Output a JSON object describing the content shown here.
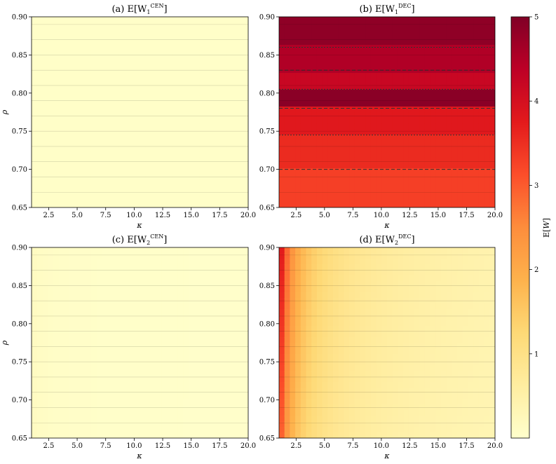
{
  "chart_data": [
    {
      "type": "heatmap",
      "panel": "a",
      "title": {
        "prefix": "(a) E[W",
        "sub": "1",
        "sup": "CEN",
        "suffix": "]"
      },
      "xlabel": "κ",
      "ylabel": "ρ",
      "xlim": [
        1,
        20
      ],
      "ylim": [
        0.65,
        0.9
      ],
      "xticks": [
        2.5,
        5.0,
        7.5,
        10.0,
        12.5,
        15.0,
        17.5,
        20.0
      ],
      "xtick_labels": [
        "2.5",
        "5.0",
        "7.5",
        "10.0",
        "12.5",
        "15.0",
        "17.5",
        "20.0"
      ],
      "yticks": [
        0.65,
        0.7,
        0.75,
        0.8,
        0.85,
        0.9
      ],
      "ytick_labels": [
        "0.65",
        "0.70",
        "0.75",
        "0.80",
        "0.85",
        "0.90"
      ],
      "approx_value": "low (~0.05) everywhere",
      "base_value": 0.05,
      "kappa_decay": 0.0,
      "rho_growth": 0.0,
      "band_values": [
        {
          "rho_from": 0.65,
          "rho_to": 0.9,
          "value": 0.05
        }
      ]
    },
    {
      "type": "heatmap",
      "panel": "b",
      "title": {
        "prefix": "(b) E[W",
        "sub": "1",
        "sup": "DEC",
        "suffix": "]"
      },
      "xlabel": "κ",
      "ylabel": "",
      "xlim": [
        1,
        20
      ],
      "ylim": [
        0.65,
        0.9
      ],
      "xticks": [
        2.5,
        5.0,
        7.5,
        10.0,
        12.5,
        15.0,
        17.5,
        20.0
      ],
      "xtick_labels": [
        "2.5",
        "5.0",
        "7.5",
        "10.0",
        "12.5",
        "15.0",
        "17.5",
        "20.0"
      ],
      "yticks": [
        0.65,
        0.7,
        0.75,
        0.8,
        0.85,
        0.9
      ],
      "ytick_labels": [
        "0.65",
        "0.70",
        "0.75",
        "0.80",
        "0.85",
        "0.90"
      ],
      "approx_value": "~3.2 at rho=0.65 rising to ~4.9 near rho=0.80-0.90",
      "base_value": 3.2,
      "kappa_decay": 0.0,
      "rho_growth": 0.0,
      "band_values": [
        {
          "rho_from": 0.65,
          "rho_to": 0.7,
          "value": 3.3
        },
        {
          "rho_from": 0.7,
          "rho_to": 0.745,
          "value": 3.55
        },
        {
          "rho_from": 0.745,
          "rho_to": 0.78,
          "value": 3.8
        },
        {
          "rho_from": 0.78,
          "rho_to": 0.805,
          "value": 4.9
        },
        {
          "rho_from": 0.805,
          "rho_to": 0.83,
          "value": 4.2
        },
        {
          "rho_from": 0.83,
          "rho_to": 0.86,
          "value": 4.5
        },
        {
          "rho_from": 0.86,
          "rho_to": 0.9,
          "value": 4.85
        }
      ]
    },
    {
      "type": "heatmap",
      "panel": "c",
      "title": {
        "prefix": "(c) E[W",
        "sub": "2",
        "sup": "CEN",
        "suffix": "]"
      },
      "xlabel": "κ",
      "ylabel": "ρ",
      "xlim": [
        1,
        20
      ],
      "ylim": [
        0.65,
        0.9
      ],
      "xticks": [
        2.5,
        5.0,
        7.5,
        10.0,
        12.5,
        15.0,
        17.5,
        20.0
      ],
      "xtick_labels": [
        "2.5",
        "5.0",
        "7.5",
        "10.0",
        "12.5",
        "15.0",
        "17.5",
        "20.0"
      ],
      "yticks": [
        0.65,
        0.7,
        0.75,
        0.8,
        0.85,
        0.9
      ],
      "ytick_labels": [
        "0.65",
        "0.70",
        "0.75",
        "0.80",
        "0.85",
        "0.90"
      ],
      "approx_value": "very low (~0.02) everywhere, slightly higher at small kappa",
      "base_value": 0.02,
      "kappa_decay": 0.15,
      "rho_growth": 0.1,
      "band_values": []
    },
    {
      "type": "heatmap",
      "panel": "d",
      "title": {
        "prefix": "(d) E[W",
        "sub": "2",
        "sup": "DEC",
        "suffix": "]"
      },
      "xlabel": "κ",
      "ylabel": "",
      "xlim": [
        1,
        20
      ],
      "ylim": [
        0.65,
        0.9
      ],
      "xticks": [
        2.5,
        5.0,
        7.5,
        10.0,
        12.5,
        15.0,
        17.5,
        20.0
      ],
      "xtick_labels": [
        "2.5",
        "5.0",
        "7.5",
        "10.0",
        "12.5",
        "15.0",
        "17.5",
        "20.0"
      ],
      "yticks": [
        0.65,
        0.7,
        0.75,
        0.8,
        0.85,
        0.9
      ],
      "ytick_labels": [
        "0.65",
        "0.70",
        "0.75",
        "0.80",
        "0.85",
        "0.90"
      ],
      "approx_value": "~3.5 at kappa=1 decaying to ~0.1 at kappa=20",
      "base_value": 0.08,
      "kappa_decay": 3.4,
      "rho_growth": 1.0,
      "band_values": []
    }
  ],
  "colorbar": {
    "label_prefix": "E[",
    "label_var": "W",
    "label_suffix": "]",
    "range": [
      0,
      5
    ],
    "ticks": [
      1,
      2,
      3,
      4,
      5
    ],
    "tick_labels": [
      "1",
      "2",
      "3",
      "4",
      "5"
    ],
    "colormap": "YlOrRd",
    "stops": [
      "#ffffcc",
      "#ffeda0",
      "#fed976",
      "#feb24c",
      "#fd8d3c",
      "#fc4e2a",
      "#e31a1c",
      "#bd0026",
      "#800026"
    ]
  }
}
